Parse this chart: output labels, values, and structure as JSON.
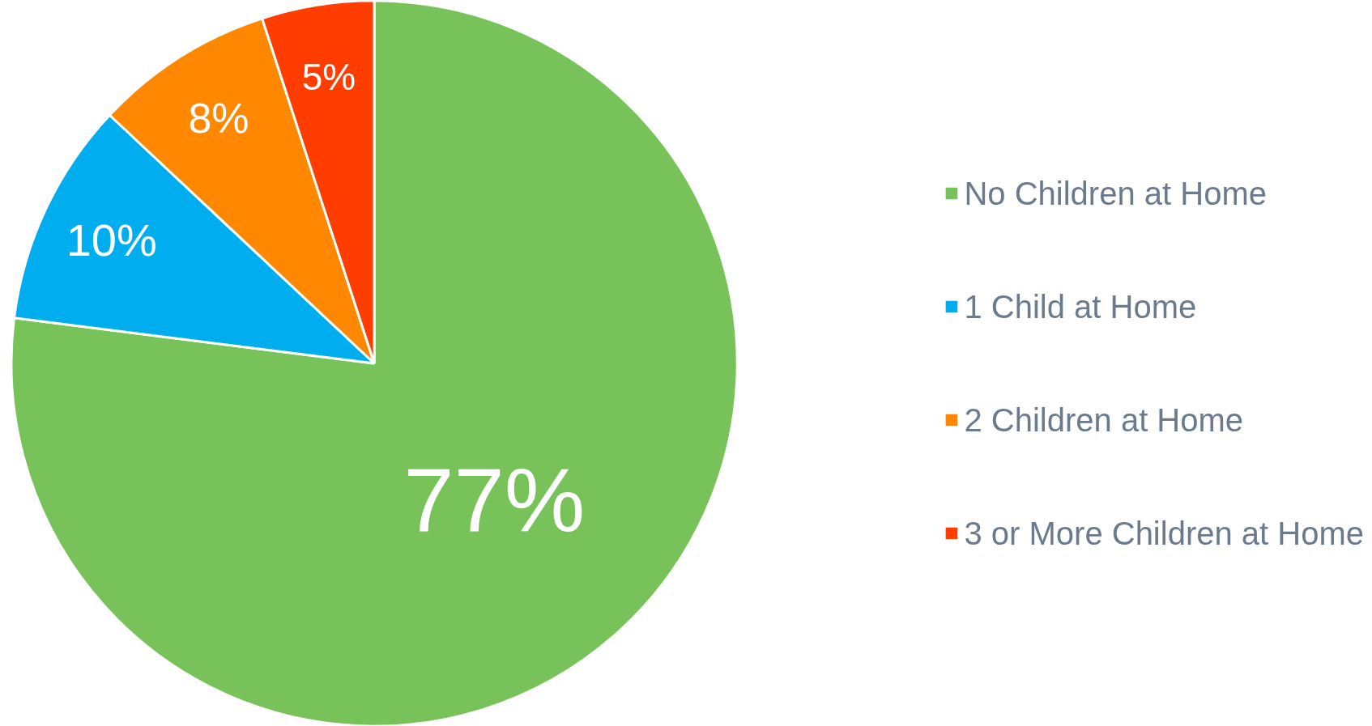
{
  "chart_data": {
    "type": "pie",
    "categories": [
      "No Children at Home",
      "1 Child at Home",
      "2 Children at Home",
      "3 or More Children at Home"
    ],
    "values": [
      77,
      10,
      8,
      5
    ],
    "colors": [
      "#77c35a",
      "#00adef",
      "#ff8800",
      "#ff3d00"
    ],
    "value_labels": [
      "77%",
      "10%",
      "8%",
      "5%"
    ],
    "legend": "right"
  }
}
